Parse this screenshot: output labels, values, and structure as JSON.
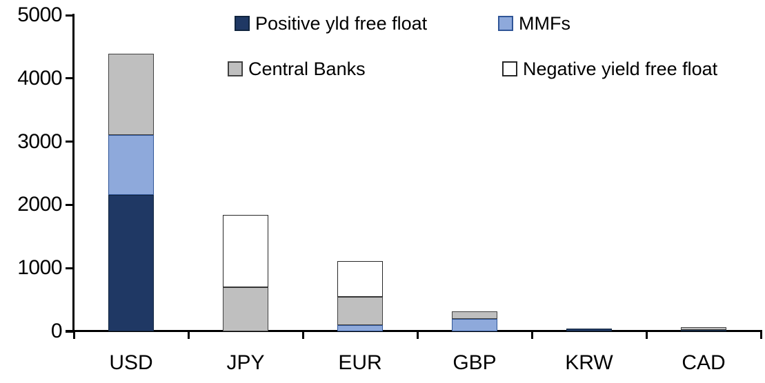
{
  "chart_data": {
    "type": "bar",
    "stacked": true,
    "title": "",
    "xlabel": "",
    "ylabel": "",
    "categories": [
      "USD",
      "JPY",
      "EUR",
      "GBP",
      "KRW",
      "CAD"
    ],
    "series": [
      {
        "name": "Positive yld free float",
        "color": "#1F3864",
        "border": "#10243E",
        "values": [
          2160,
          0,
          0,
          0,
          40,
          25
        ]
      },
      {
        "name": "MMFs",
        "color": "#8EA9DB",
        "border": "#2F5597",
        "values": [
          940,
          0,
          100,
          200,
          0,
          0
        ]
      },
      {
        "name": "Central Banks",
        "color": "#BFBFBF",
        "border": "#404040",
        "values": [
          1290,
          700,
          440,
          120,
          0,
          35
        ]
      },
      {
        "name": "Negative yield free float",
        "color": "#FFFFFF",
        "border": "#262626",
        "values": [
          0,
          1140,
          570,
          0,
          0,
          0
        ]
      }
    ],
    "ylim": [
      0,
      5000
    ],
    "yticks": [
      0,
      1000,
      2000,
      3000,
      4000,
      5000
    ],
    "legend_position": "top",
    "legend_rows": 2,
    "grid": false,
    "axis_color": "#000000",
    "background_color": "#FFFFFF"
  }
}
